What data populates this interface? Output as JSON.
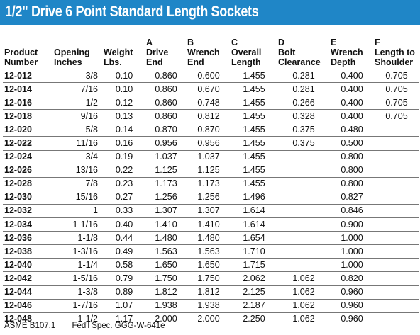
{
  "title": "1/2\" Drive 6 Point Standard Length Sockets",
  "headers": [
    [
      "",
      "Product",
      "Number"
    ],
    [
      "",
      "Opening",
      "Inches"
    ],
    [
      "",
      "Weight",
      "Lbs."
    ],
    [
      "A",
      "Drive",
      "End"
    ],
    [
      "B",
      "Wrench",
      "End"
    ],
    [
      "C",
      "Overall",
      "Length"
    ],
    [
      "D",
      "Bolt",
      "Clearance"
    ],
    [
      "E",
      "Wrench",
      "Depth"
    ],
    [
      "F",
      "Length to",
      "Shoulder"
    ]
  ],
  "rows": [
    [
      "12-012",
      "3/8",
      "0.10",
      "0.860",
      "0.600",
      "1.455",
      "0.281",
      "0.400",
      "0.705"
    ],
    [
      "12-014",
      "7/16",
      "0.10",
      "0.860",
      "0.670",
      "1.455",
      "0.281",
      "0.400",
      "0.705"
    ],
    [
      "12-016",
      "1/2",
      "0.12",
      "0.860",
      "0.748",
      "1.455",
      "0.266",
      "0.400",
      "0.705"
    ],
    [
      "12-018",
      "9/16",
      "0.13",
      "0.860",
      "0.812",
      "1.455",
      "0.328",
      "0.400",
      "0.705"
    ],
    [
      "12-020",
      "5/8",
      "0.14",
      "0.870",
      "0.870",
      "1.455",
      "0.375",
      "0.480",
      ""
    ],
    [
      "12-022",
      "11/16",
      "0.16",
      "0.956",
      "0.956",
      "1.455",
      "0.375",
      "0.500",
      ""
    ],
    [
      "12-024",
      "3/4",
      "0.19",
      "1.037",
      "1.037",
      "1.455",
      "",
      "0.800",
      ""
    ],
    [
      "12-026",
      "13/16",
      "0.22",
      "1.125",
      "1.125",
      "1.455",
      "",
      "0.800",
      ""
    ],
    [
      "12-028",
      "7/8",
      "0.23",
      "1.173",
      "1.173",
      "1.455",
      "",
      "0.800",
      ""
    ],
    [
      "12-030",
      "15/16",
      "0.27",
      "1.256",
      "1.256",
      "1.496",
      "",
      "0.827",
      ""
    ],
    [
      "12-032",
      "1",
      "0.33",
      "1.307",
      "1.307",
      "1.614",
      "",
      "0.846",
      ""
    ],
    [
      "12-034",
      "1-1/16",
      "0.40",
      "1.410",
      "1.410",
      "1.614",
      "",
      "0.900",
      ""
    ],
    [
      "12-036",
      "1-1/8",
      "0.44",
      "1.480",
      "1.480",
      "1.654",
      "",
      "1.000",
      ""
    ],
    [
      "12-038",
      "1-3/16",
      "0.49",
      "1.563",
      "1.563",
      "1.710",
      "",
      "1.000",
      ""
    ],
    [
      "12-040",
      "1-1/4",
      "0.58",
      "1.650",
      "1.650",
      "1.715",
      "",
      "1.000",
      ""
    ],
    [
      "12-042",
      "1-5/16",
      "0.79",
      "1.750",
      "1.750",
      "2.062",
      "1.062",
      "0.820",
      ""
    ],
    [
      "12-044",
      "1-3/8",
      "0.89",
      "1.812",
      "1.812",
      "2.125",
      "1.062",
      "0.960",
      ""
    ],
    [
      "12-046",
      "1-7/16",
      "1.07",
      "1.938",
      "1.938",
      "2.187",
      "1.062",
      "0.960",
      ""
    ],
    [
      "12-048",
      "1-1/2",
      "1.17",
      "2.000",
      "2.000",
      "2.250",
      "1.062",
      "0.960",
      ""
    ]
  ],
  "footer": {
    "standard": "ASME B107.1",
    "spec": "Fed'l Spec. GGG-W-641e"
  },
  "colors": {
    "title_bar": "#1f86c7",
    "title_text": "#ffffff"
  }
}
